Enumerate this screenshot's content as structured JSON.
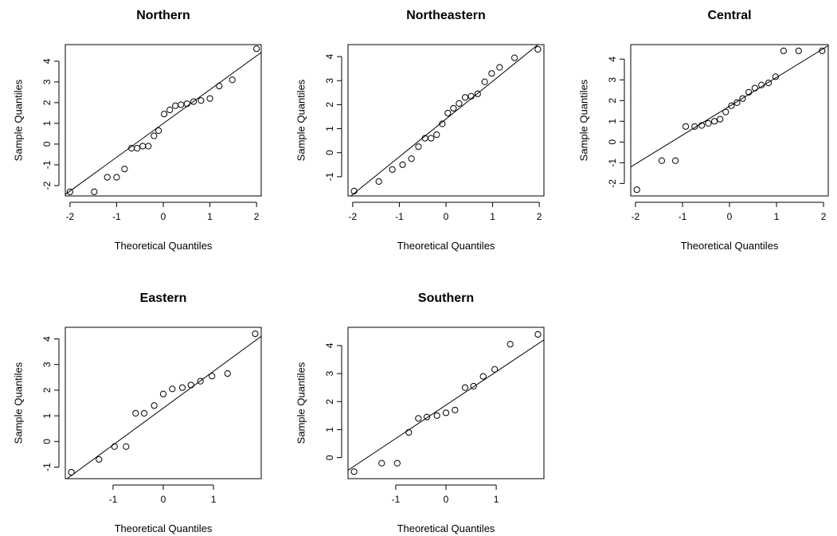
{
  "chart_data": [
    {
      "type": "scatter",
      "title": "Northern",
      "xlabel": "Theoretical Quantiles",
      "ylabel": "Sample Quantiles",
      "xlim": [
        -2.1,
        2.1
      ],
      "ylim": [
        -2.5,
        4.8
      ],
      "xticks": [
        -2,
        -1,
        0,
        1,
        2
      ],
      "yticks": [
        -2,
        -1,
        0,
        1,
        2,
        3,
        4
      ],
      "reference_line": [
        [
          -2.1,
          -2.43
        ],
        [
          2.1,
          4.42
        ]
      ],
      "x": [
        -2.0,
        -1.48,
        -1.2,
        -1.0,
        -0.83,
        -0.68,
        -0.56,
        -0.44,
        -0.32,
        -0.2,
        -0.1,
        0.02,
        0.14,
        0.26,
        0.38,
        0.51,
        0.65,
        0.81,
        1.0,
        1.2,
        1.48,
        2.0
      ],
      "y": [
        -2.3,
        -2.3,
        -1.6,
        -1.6,
        -1.2,
        -0.2,
        -0.2,
        -0.1,
        -0.1,
        0.4,
        0.65,
        1.45,
        1.65,
        1.85,
        1.9,
        1.95,
        2.05,
        2.1,
        2.2,
        2.8,
        3.1,
        4.6
      ]
    },
    {
      "type": "scatter",
      "title": "Northeastern",
      "xlabel": "Theoretical Quantiles",
      "ylabel": "Sample Quantiles",
      "xlim": [
        -2.1,
        2.1
      ],
      "ylim": [
        -1.8,
        4.5
      ],
      "xticks": [
        -2,
        -1,
        0,
        1,
        2
      ],
      "yticks": [
        -1,
        0,
        1,
        2,
        3,
        4
      ],
      "reference_line": [
        [
          -2.1,
          -1.9
        ],
        [
          2.1,
          4.7
        ]
      ],
      "x": [
        -1.97,
        -1.44,
        -1.15,
        -0.93,
        -0.74,
        -0.59,
        -0.45,
        -0.32,
        -0.2,
        -0.08,
        0.04,
        0.16,
        0.28,
        0.41,
        0.54,
        0.68,
        0.83,
        0.98,
        1.15,
        1.47,
        1.97
      ],
      "y": [
        -1.6,
        -1.2,
        -0.7,
        -0.5,
        -0.25,
        0.25,
        0.6,
        0.6,
        0.75,
        1.2,
        1.65,
        1.85,
        2.05,
        2.3,
        2.35,
        2.45,
        2.95,
        3.3,
        3.55,
        3.95,
        4.3
      ]
    },
    {
      "type": "scatter",
      "title": "Central",
      "xlabel": "Theoretical Quantiles",
      "ylabel": "Sample Quantiles",
      "xlim": [
        -2.1,
        2.1
      ],
      "ylim": [
        -2.6,
        4.7
      ],
      "xticks": [
        -2,
        -1,
        0,
        1,
        2
      ],
      "yticks": [
        -2,
        -1,
        0,
        1,
        2,
        3,
        4
      ],
      "reference_line": [
        [
          -2.1,
          -1.2
        ],
        [
          2.1,
          4.65
        ]
      ],
      "x": [
        -1.97,
        -1.44,
        -1.15,
        -0.93,
        -0.74,
        -0.59,
        -0.45,
        -0.32,
        -0.2,
        -0.08,
        0.04,
        0.16,
        0.28,
        0.41,
        0.54,
        0.68,
        0.83,
        0.98,
        1.15,
        1.47,
        1.97
      ],
      "y": [
        -2.3,
        -0.9,
        -0.9,
        0.75,
        0.75,
        0.8,
        0.9,
        1.0,
        1.1,
        1.45,
        1.75,
        1.9,
        2.1,
        2.4,
        2.6,
        2.75,
        2.85,
        3.15,
        4.4,
        4.4,
        4.4
      ]
    },
    {
      "type": "scatter",
      "title": "Eastern",
      "xlabel": "Theoretical Quantiles",
      "ylabel": "Sample Quantiles",
      "xlim": [
        -1.95,
        1.95
      ],
      "ylim": [
        -1.45,
        4.45
      ],
      "xticks": [
        -1,
        0,
        1
      ],
      "yticks": [
        -1,
        0,
        1,
        2,
        3,
        4
      ],
      "reference_line": [
        [
          -1.95,
          -1.5
        ],
        [
          1.95,
          4.1
        ]
      ],
      "x": [
        -1.83,
        -1.28,
        -0.97,
        -0.74,
        -0.55,
        -0.38,
        -0.18,
        0.0,
        0.18,
        0.38,
        0.55,
        0.74,
        0.97,
        1.28,
        1.83
      ],
      "y": [
        -1.2,
        -0.7,
        -0.2,
        -0.2,
        1.1,
        1.1,
        1.4,
        1.85,
        2.05,
        2.1,
        2.2,
        2.35,
        2.55,
        2.65,
        4.2
      ]
    },
    {
      "type": "scatter",
      "title": "Southern",
      "xlabel": "Theoretical Quantiles",
      "ylabel": "Sample Quantiles",
      "xlim": [
        -1.95,
        1.95
      ],
      "ylim": [
        -0.75,
        4.65
      ],
      "xticks": [
        -1,
        0,
        1
      ],
      "yticks": [
        0,
        1,
        2,
        3,
        4
      ],
      "reference_line": [
        [
          -1.95,
          -0.45
        ],
        [
          1.95,
          4.2
        ]
      ],
      "x": [
        -1.83,
        -1.28,
        -0.97,
        -0.74,
        -0.55,
        -0.38,
        -0.18,
        0.0,
        0.18,
        0.38,
        0.55,
        0.74,
        0.97,
        1.28,
        1.83
      ],
      "y": [
        -0.5,
        -0.2,
        -0.2,
        0.9,
        1.4,
        1.45,
        1.5,
        1.6,
        1.7,
        2.5,
        2.55,
        2.9,
        3.15,
        4.05,
        4.4
      ]
    }
  ]
}
